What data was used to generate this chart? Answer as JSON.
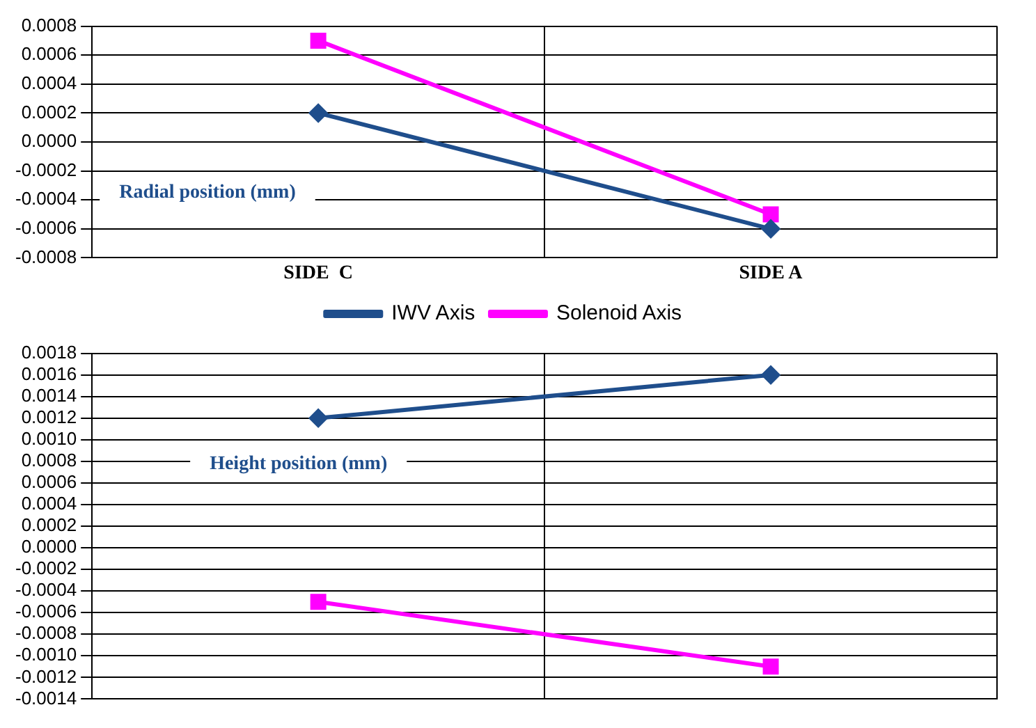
{
  "chart_data": [
    {
      "type": "line",
      "categories": [
        "SIDE  C",
        "SIDE A"
      ],
      "series": [
        {
          "name": "IWV Axis",
          "color": "#1f4e8c",
          "values": [
            0.0002,
            -0.0006
          ],
          "marker": "diamond"
        },
        {
          "name": "Solenoid Axis",
          "color": "#ff00ff",
          "values": [
            0.0007,
            -0.0005
          ],
          "marker": "square"
        }
      ],
      "ylim": [
        -0.0008,
        0.0008
      ],
      "yticks": [
        -0.0008,
        -0.0006,
        -0.0004,
        -0.0002,
        {
          "value": 0,
          "label": "0.0000"
        },
        0.0002,
        0.0004,
        0.0006,
        0.0008
      ],
      "grid": true,
      "legend": "bottom",
      "annotations": [
        "Radial position (mm)"
      ]
    },
    {
      "type": "line",
      "categories": [
        null,
        null
      ],
      "series": [
        {
          "color": "#1f4e8c",
          "values": [
            0.0012,
            0.0016
          ],
          "marker": "diamond"
        },
        {
          "color": "#ff00ff",
          "values": [
            -0.0005,
            -0.0011
          ],
          "marker": "square"
        }
      ],
      "ylim": [
        -0.0014,
        0.0018
      ],
      "yticks": [
        -0.0014,
        -0.0012,
        {
          "value": -0.001,
          "label": "-0.0010"
        },
        -0.0008,
        -0.0006,
        -0.0004,
        -0.0002,
        {
          "value": 0,
          "label": "0.0000"
        },
        0.0002,
        0.0004,
        0.0006,
        0.0008,
        {
          "value": 0.001,
          "label": "0.0010"
        },
        0.0012,
        0.0014,
        0.0016,
        0.0018
      ],
      "grid": true,
      "tick_labels": "y",
      "annotations": [
        "Height position (mm)"
      ]
    }
  ]
}
